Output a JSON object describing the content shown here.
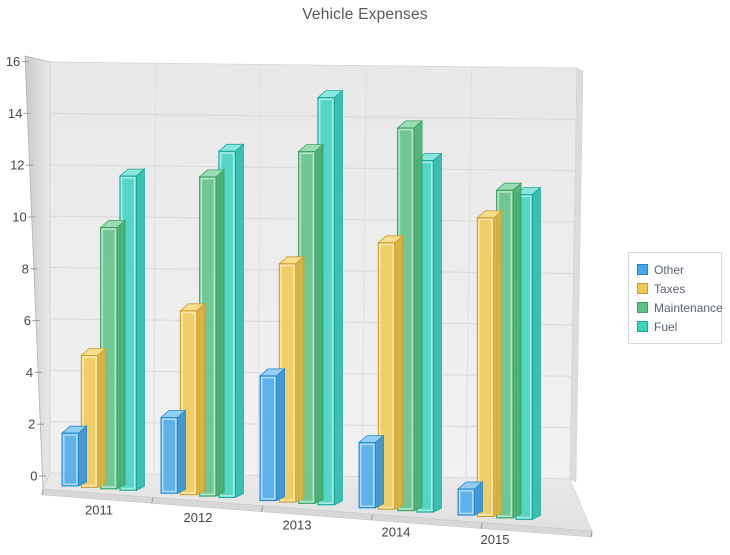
{
  "title": {
    "text": "Vehicle Expenses",
    "color": "#5a5a5a"
  },
  "chart_data": {
    "type": "bar",
    "projection": "3d",
    "title": "Vehicle Expenses",
    "xlabel": "",
    "ylabel": "",
    "categories": [
      "2011",
      "2012",
      "2013",
      "2014",
      "2015"
    ],
    "series": [
      {
        "name": "Other",
        "values": [
          2.0,
          2.8,
          4.5,
          2.3,
          0.9
        ],
        "color": "#45a7ea",
        "color_top": "#8ecbf3",
        "color_side": "#2f91d8",
        "color_stroke": "#2187cf"
      },
      {
        "name": "Taxes",
        "values": [
          5.0,
          6.8,
          8.6,
          9.4,
          10.3
        ],
        "color": "#efc94e",
        "color_top": "#f6dd88",
        "color_side": "#dfae35",
        "color_stroke": "#cd9d2e"
      },
      {
        "name": "Maintenance",
        "values": [
          9.9,
          11.8,
          12.7,
          13.5,
          11.3
        ],
        "color": "#5cc184",
        "color_top": "#97dab0",
        "color_side": "#44ab6c",
        "color_stroke": "#3b9f62"
      },
      {
        "name": "Fuel",
        "values": [
          11.9,
          12.8,
          14.7,
          12.4,
          11.2
        ],
        "color": "#3bd2c0",
        "color_top": "#86e6da",
        "color_side": "#23b8a8",
        "color_stroke": "#16a89a"
      }
    ],
    "ylim": [
      0,
      16
    ],
    "y_ticks": [
      "0",
      "2",
      "4",
      "6",
      "8",
      "10",
      "12",
      "14",
      "16"
    ],
    "grid": true,
    "legend_position": "right",
    "axis_text_color": "#474747",
    "grid_color": "#d9d9d9"
  }
}
